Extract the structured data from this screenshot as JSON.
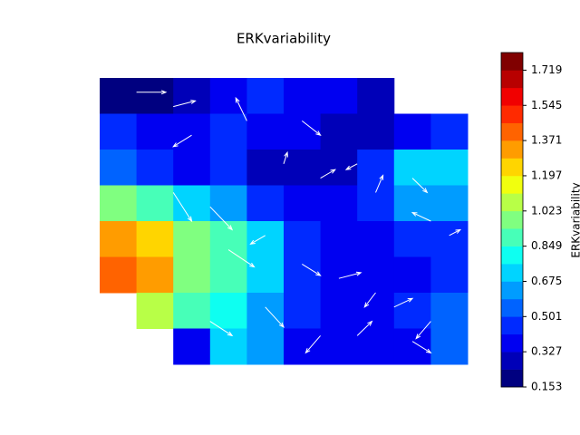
{
  "chart_data": {
    "type": "contourf",
    "title": "ERKvariability",
    "colorbar_label": "ERKvariability",
    "colormap": "jet",
    "xlim": [
      0,
      1
    ],
    "ylim": [
      0,
      1
    ],
    "levels": [
      0.153,
      0.24,
      0.327,
      0.414,
      0.501,
      0.588,
      0.675,
      0.762,
      0.849,
      0.936,
      1.023,
      1.11,
      1.197,
      1.284,
      1.371,
      1.458,
      1.545,
      1.632,
      1.719,
      1.806
    ],
    "cticks": [
      0.153,
      0.327,
      0.501,
      0.675,
      0.849,
      1.023,
      1.197,
      1.371,
      1.545,
      1.719
    ],
    "z": [
      [
        0.2,
        0.22,
        0.3,
        0.38,
        0.42,
        0.4,
        0.35,
        0.3,
        null,
        null
      ],
      [
        0.45,
        0.4,
        0.38,
        0.42,
        0.4,
        0.35,
        0.3,
        0.3,
        0.4,
        0.5
      ],
      [
        0.55,
        0.45,
        0.4,
        0.45,
        0.3,
        0.25,
        0.3,
        0.5,
        0.7,
        0.75
      ],
      [
        1.0,
        0.85,
        0.7,
        0.6,
        0.45,
        0.35,
        0.35,
        0.45,
        0.65,
        0.6
      ],
      [
        1.3,
        1.2,
        1.0,
        0.9,
        0.7,
        0.45,
        0.4,
        0.4,
        0.5,
        0.45
      ],
      [
        1.4,
        1.3,
        1.0,
        0.85,
        0.75,
        0.5,
        0.4,
        0.35,
        0.4,
        0.45
      ],
      [
        null,
        1.1,
        0.9,
        0.8,
        0.6,
        0.45,
        0.4,
        0.35,
        0.45,
        0.55
      ],
      [
        null,
        null,
        0.35,
        0.7,
        0.6,
        0.4,
        0.35,
        0.35,
        0.35,
        0.55
      ]
    ],
    "quiver": {
      "color": "#ffffff",
      "x": [
        0.1,
        0.2,
        0.25,
        0.4,
        0.55,
        0.5,
        0.6,
        0.7,
        0.75,
        0.85,
        0.9,
        0.95,
        0.2,
        0.3,
        0.35,
        0.45,
        0.55,
        0.65,
        0.75,
        0.8,
        0.9,
        0.3,
        0.45,
        0.6,
        0.7,
        0.85
      ],
      "y": [
        0.95,
        0.9,
        0.8,
        0.85,
        0.85,
        0.7,
        0.65,
        0.7,
        0.6,
        0.65,
        0.5,
        0.45,
        0.6,
        0.55,
        0.4,
        0.45,
        0.35,
        0.3,
        0.25,
        0.2,
        0.15,
        0.15,
        0.2,
        0.1,
        0.1,
        0.08
      ],
      "u": [
        0.08,
        0.06,
        -0.05,
        -0.03,
        0.05,
        0.01,
        0.04,
        -0.03,
        0.02,
        0.04,
        -0.05,
        0.03,
        0.05,
        0.06,
        0.07,
        -0.04,
        0.05,
        0.06,
        -0.03,
        0.05,
        -0.04,
        0.06,
        0.05,
        -0.04,
        0.04,
        0.05
      ],
      "v": [
        0.0,
        0.02,
        -0.04,
        0.08,
        -0.05,
        0.04,
        0.03,
        -0.02,
        0.06,
        -0.05,
        0.03,
        0.02,
        -0.1,
        -0.08,
        -0.06,
        -0.03,
        -0.04,
        0.02,
        -0.05,
        0.03,
        -0.06,
        -0.05,
        -0.07,
        -0.06,
        0.05,
        -0.04
      ]
    }
  }
}
